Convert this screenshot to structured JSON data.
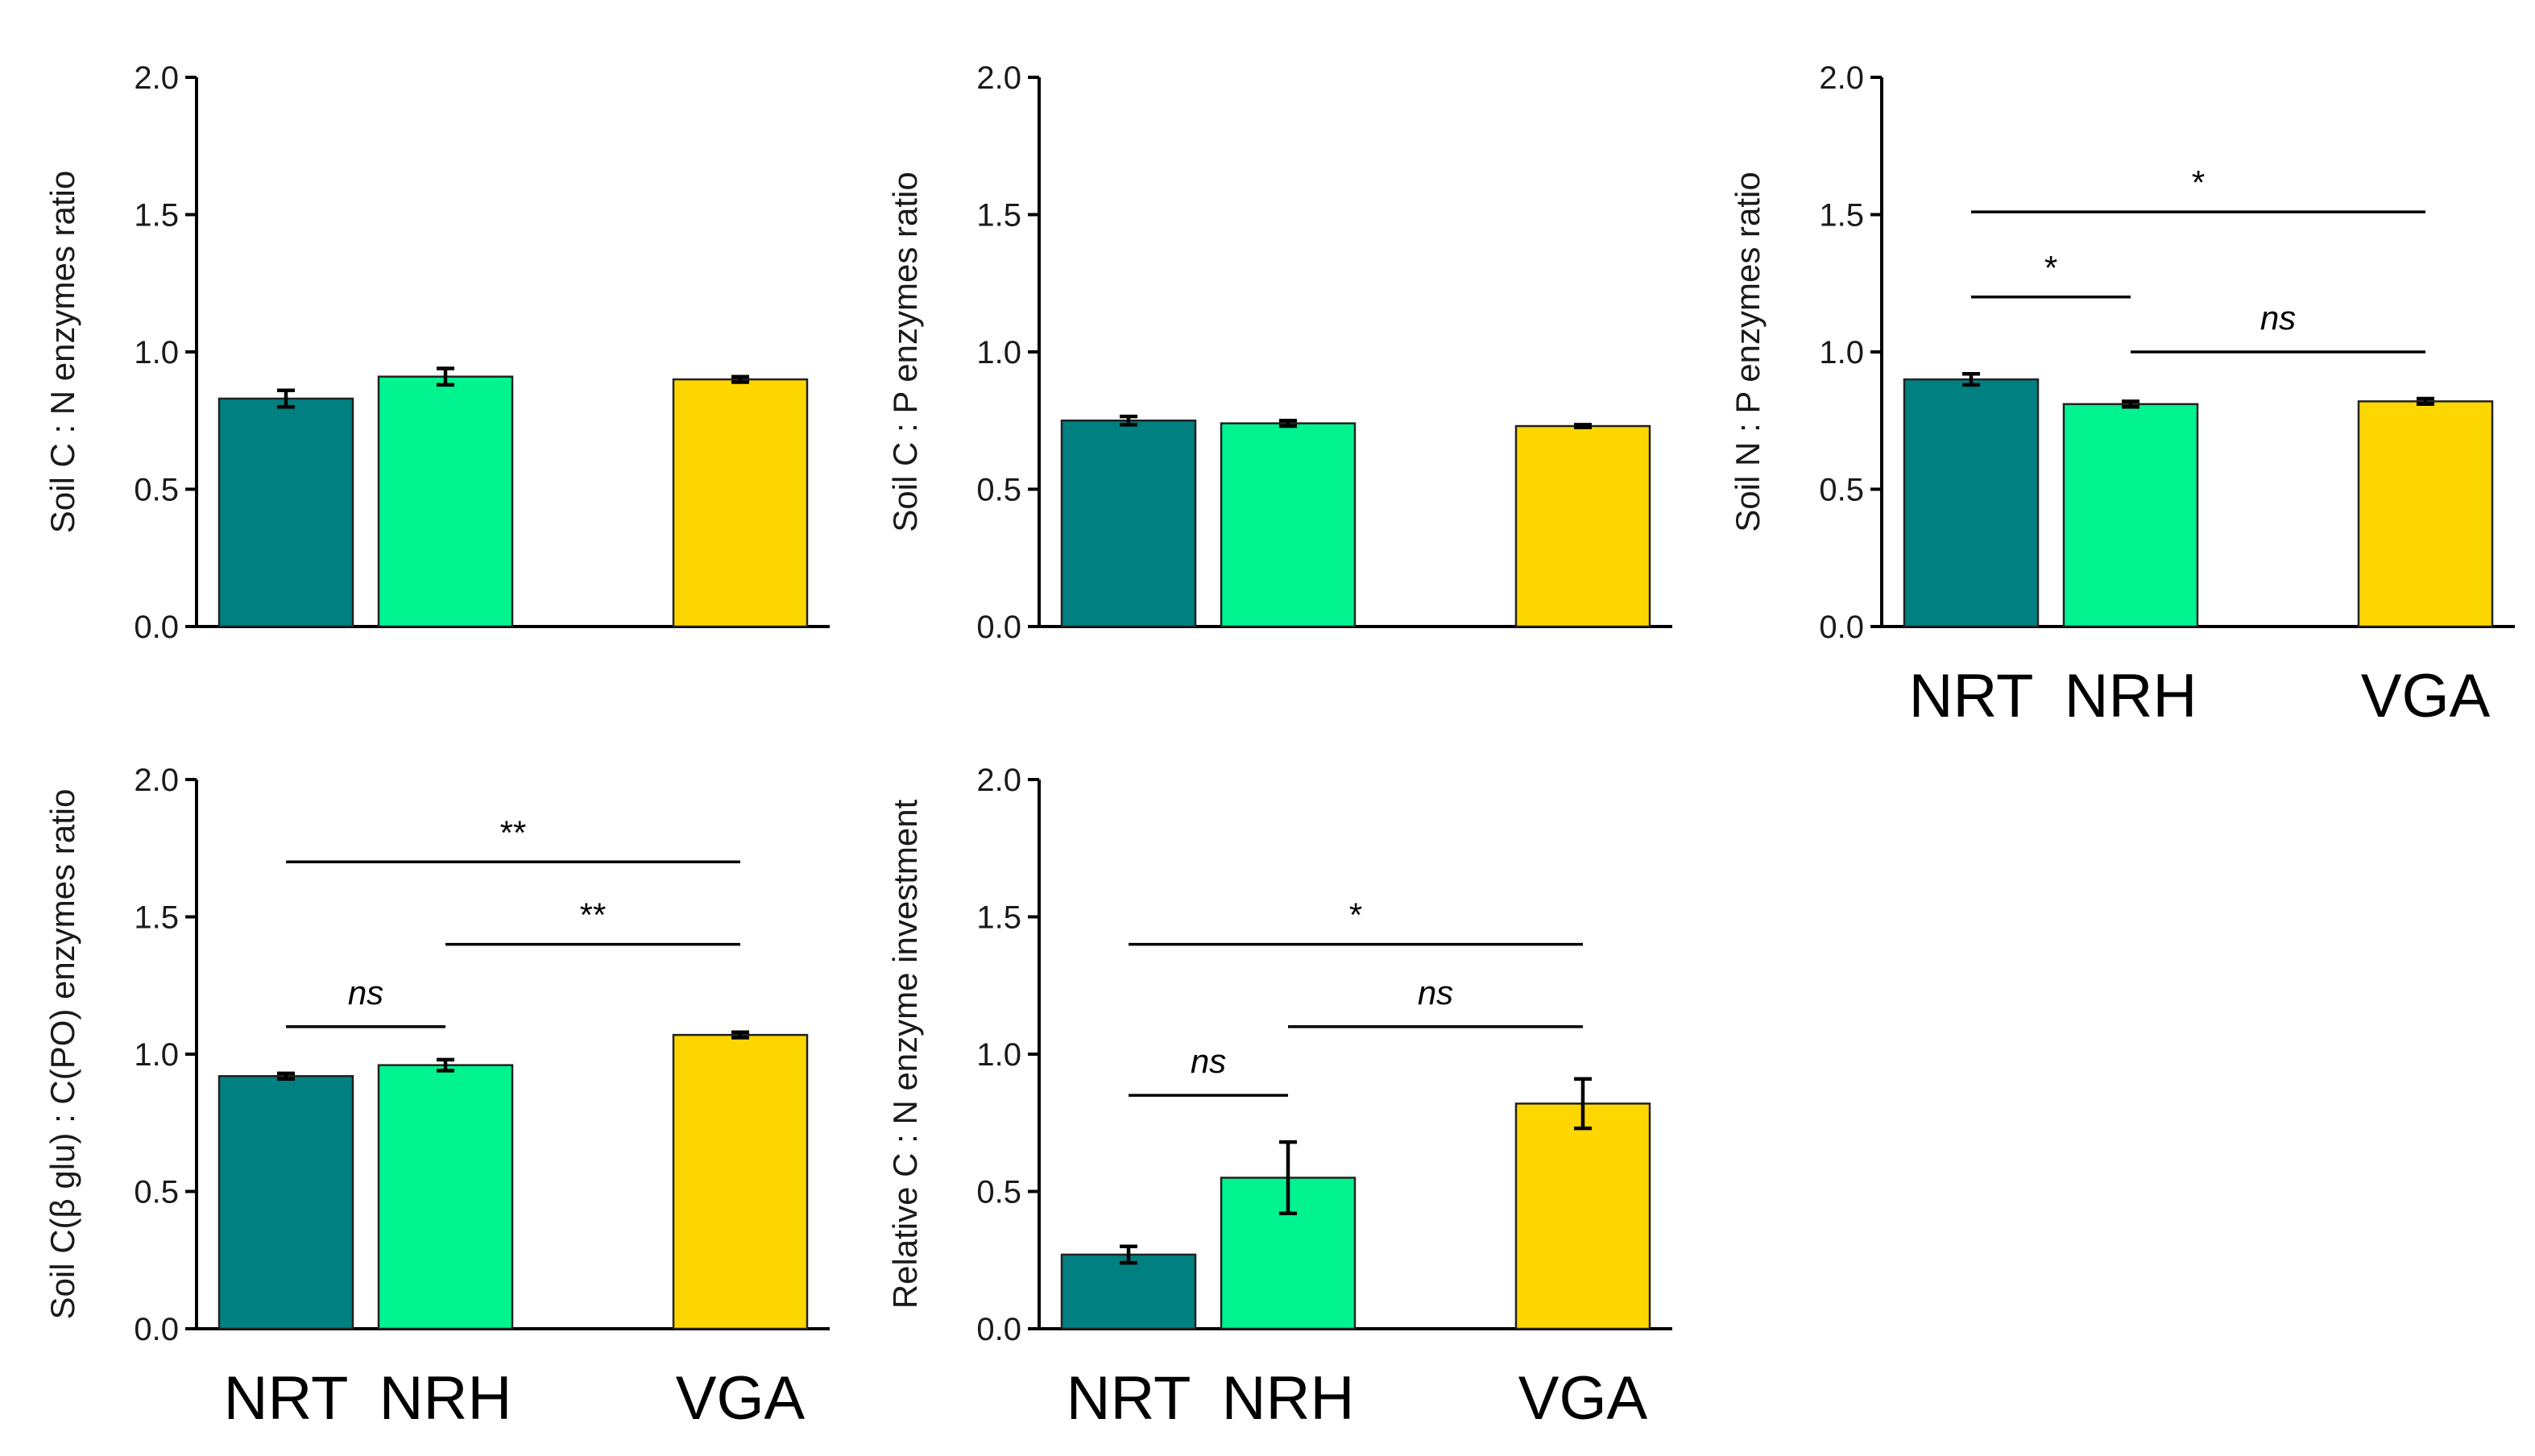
{
  "colors": {
    "NRT": "#008080",
    "NRH": "#00F38F",
    "VGA": "#FFD700"
  },
  "chart_data": [
    {
      "type": "bar",
      "ylabel": "Soil C : N enzymes ratio",
      "ylim": [
        0,
        2.0
      ],
      "ticks": [
        "0.0",
        "0.5",
        "1.0",
        "1.5",
        "2.0"
      ],
      "categories": [
        "NRT",
        "NRH",
        "VGA"
      ],
      "show_category_labels": false,
      "values": [
        0.83,
        0.91,
        0.9
      ],
      "errors": [
        0.03,
        0.03,
        0.01
      ],
      "significance": []
    },
    {
      "type": "bar",
      "ylabel": "Soil C : P enzymes ratio",
      "ylim": [
        0,
        2.0
      ],
      "ticks": [
        "0.0",
        "0.5",
        "1.0",
        "1.5",
        "2.0"
      ],
      "categories": [
        "NRT",
        "NRH",
        "VGA"
      ],
      "show_category_labels": false,
      "values": [
        0.75,
        0.74,
        0.73
      ],
      "errors": [
        0.015,
        0.01,
        0.005
      ],
      "significance": []
    },
    {
      "type": "bar",
      "ylabel": "Soil N : P enzymes ratio",
      "ylim": [
        0,
        2.0
      ],
      "ticks": [
        "0.0",
        "0.5",
        "1.0",
        "1.5",
        "2.0"
      ],
      "categories": [
        "NRT",
        "NRH",
        "VGA"
      ],
      "show_category_labels": true,
      "values": [
        0.9,
        0.81,
        0.82
      ],
      "errors": [
        0.02,
        0.01,
        0.01
      ],
      "significance": [
        {
          "from": 0,
          "to": 1,
          "y": 1.2,
          "label": "*"
        },
        {
          "from": 1,
          "to": 2,
          "y": 1.0,
          "label": "ns"
        },
        {
          "from": 0,
          "to": 2,
          "y": 1.51,
          "label": "*"
        }
      ]
    },
    {
      "type": "bar",
      "ylabel": "Soil C(β glu) : C(PO) enzymes ratio",
      "ylim": [
        0,
        2.0
      ],
      "ticks": [
        "0.0",
        "0.5",
        "1.0",
        "1.5",
        "2.0"
      ],
      "categories": [
        "NRT",
        "NRH",
        "VGA"
      ],
      "show_category_labels": true,
      "values": [
        0.92,
        0.96,
        1.07
      ],
      "errors": [
        0.01,
        0.02,
        0.01
      ],
      "significance": [
        {
          "from": 0,
          "to": 1,
          "y": 1.1,
          "label": "ns"
        },
        {
          "from": 1,
          "to": 2,
          "y": 1.4,
          "label": "**"
        },
        {
          "from": 0,
          "to": 2,
          "y": 1.7,
          "label": "**"
        }
      ]
    },
    {
      "type": "bar",
      "ylabel": "Relative C : N enzyme investment",
      "ylim": [
        0,
        2.0
      ],
      "ticks": [
        "0.0",
        "0.5",
        "1.0",
        "1.5",
        "2.0"
      ],
      "categories": [
        "NRT",
        "NRH",
        "VGA"
      ],
      "show_category_labels": true,
      "values": [
        0.27,
        0.55,
        0.82
      ],
      "errors": [
        0.03,
        0.13,
        0.09
      ],
      "significance": [
        {
          "from": 0,
          "to": 1,
          "y": 0.85,
          "label": "ns"
        },
        {
          "from": 1,
          "to": 2,
          "y": 1.1,
          "label": "ns"
        },
        {
          "from": 0,
          "to": 2,
          "y": 1.4,
          "label": "*"
        }
      ]
    }
  ]
}
